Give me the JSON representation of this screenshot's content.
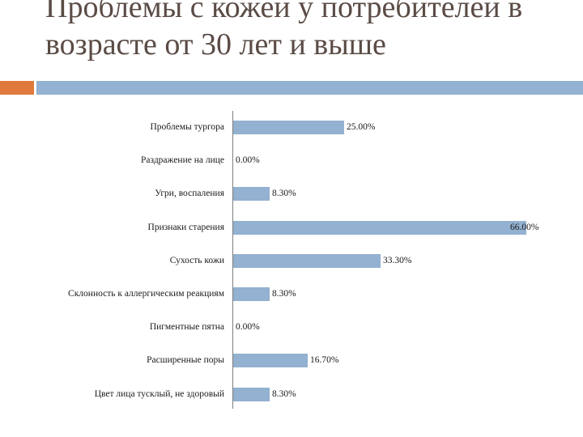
{
  "slide": {
    "title": "Проблемы с кожей у потребителей в возрасте от 30 лет и выше",
    "accent_colors": {
      "orange": "#e07a3c",
      "blue": "#93b1d0"
    }
  },
  "chart_data": {
    "type": "bar",
    "orientation": "horizontal",
    "title": "Проблемы с кожей у потребителей в возрасте от 30 лет и выше",
    "xlabel": "",
    "ylabel": "",
    "grid": false,
    "legend": null,
    "bar_color": "#93b1d0",
    "categories": [
      "Проблемы тургора",
      "Раздражение на лице",
      "Угри, воспаления",
      "Признаки старения",
      "Сухость кожи",
      "Склонность к аллергическим реакциям",
      "Пигментные пятна",
      "Расширенные поры",
      "Цвет лица тусклый, не здоровый"
    ],
    "values": [
      25.0,
      0.0,
      8.3,
      66.0,
      33.3,
      8.3,
      0.0,
      16.7,
      8.3
    ],
    "value_labels": [
      "25.00%",
      "0.00%",
      "8.30%",
      "66.00%",
      "33.30%",
      "8.30%",
      "0.00%",
      "16.70%",
      "8.30%"
    ],
    "xlim": [
      0,
      70
    ]
  }
}
